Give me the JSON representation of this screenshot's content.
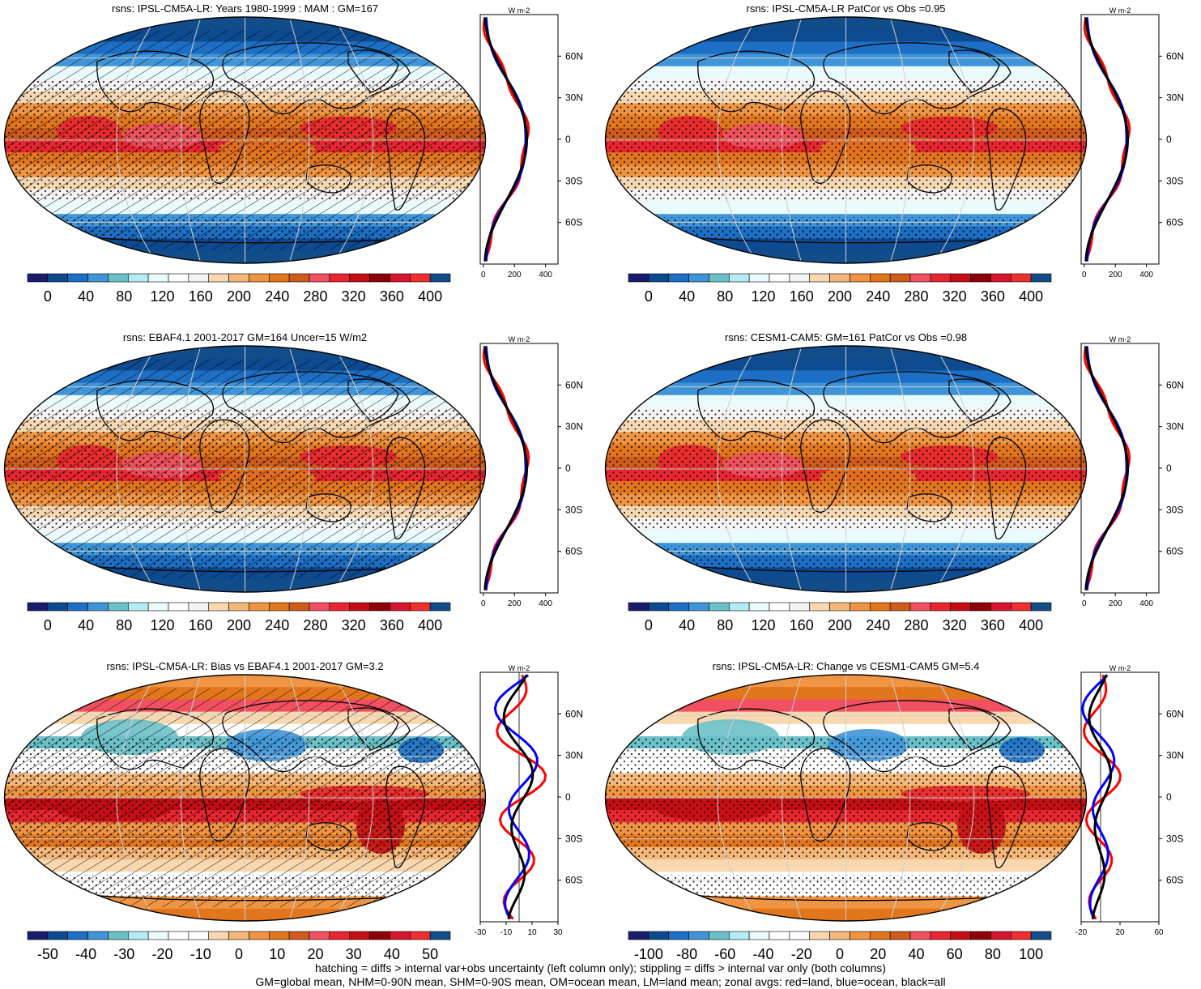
{
  "panels": [
    {
      "title": "rsns: IPSL-CM5A-LR: Years 1980-1999 : MAM : GM=167",
      "palette": [
        "#1a1d6e",
        "#0d4a8f",
        "#1c6fc4",
        "#3f95d8",
        "#6cc0c8",
        "#b3ecf2",
        "#e9fbfd",
        "#ffffff",
        "#f4f4f4",
        "#f9d8b0",
        "#f3b77a",
        "#ee9443",
        "#e2761d",
        "#d05c1c",
        "#f05060",
        "#e82630",
        "#c50d14",
        "#8e0008",
        "#d8152e",
        "#ef2e2e",
        "#124d8a"
      ],
      "colorbar_ticks": [
        "0",
        "40",
        "80",
        "120",
        "160",
        "200",
        "240",
        "280",
        "320",
        "360",
        "400"
      ],
      "zonal_xticks": [
        "0",
        "200",
        "400"
      ],
      "zonal_unit": "W m-2",
      "lat_labels": [
        "60N",
        "30N",
        "0",
        "30S",
        "60S"
      ],
      "hatch": true,
      "pattern": "clim"
    },
    {
      "title": "rsns: IPSL-CM5A-LR PatCor vs Obs =0.95",
      "palette": [
        "#1a1d6e",
        "#0d4a8f",
        "#1c6fc4",
        "#3f95d8",
        "#6cc0c8",
        "#b3ecf2",
        "#e9fbfd",
        "#ffffff",
        "#f4f4f4",
        "#f9d8b0",
        "#f3b77a",
        "#ee9443",
        "#e2761d",
        "#d05c1c",
        "#f05060",
        "#e82630",
        "#c50d14",
        "#8e0008",
        "#d8152e",
        "#ef2e2e",
        "#124d8a"
      ],
      "colorbar_ticks": [
        "0",
        "40",
        "80",
        "120",
        "160",
        "200",
        "240",
        "280",
        "320",
        "360",
        "400"
      ],
      "zonal_xticks": [
        "0",
        "200",
        "400"
      ],
      "zonal_unit": "W m-2",
      "lat_labels": [
        "60N",
        "30N",
        "0",
        "30S",
        "60S"
      ],
      "hatch": false,
      "pattern": "clim"
    },
    {
      "title": "rsns: EBAF4.1 2001-2017 GM=164 Uncer=15 W/m2",
      "palette": [
        "#1a1d6e",
        "#0d4a8f",
        "#1c6fc4",
        "#3f95d8",
        "#6cc0c8",
        "#b3ecf2",
        "#e9fbfd",
        "#ffffff",
        "#f4f4f4",
        "#f9d8b0",
        "#f3b77a",
        "#ee9443",
        "#e2761d",
        "#d05c1c",
        "#f05060",
        "#e82630",
        "#c50d14",
        "#8e0008",
        "#d8152e",
        "#ef2e2e",
        "#124d8a"
      ],
      "colorbar_ticks": [
        "0",
        "40",
        "80",
        "120",
        "160",
        "200",
        "240",
        "280",
        "320",
        "360",
        "400"
      ],
      "zonal_xticks": [
        "0",
        "200",
        "400"
      ],
      "zonal_unit": "W m-2",
      "lat_labels": [
        "60N",
        "30N",
        "0",
        "30S",
        "60S"
      ],
      "hatch": true,
      "pattern": "clim"
    },
    {
      "title": "rsns: CESM1-CAM5: GM=161 PatCor vs Obs =0.98",
      "palette": [
        "#1a1d6e",
        "#0d4a8f",
        "#1c6fc4",
        "#3f95d8",
        "#6cc0c8",
        "#b3ecf2",
        "#e9fbfd",
        "#ffffff",
        "#f4f4f4",
        "#f9d8b0",
        "#f3b77a",
        "#ee9443",
        "#e2761d",
        "#d05c1c",
        "#f05060",
        "#e82630",
        "#c50d14",
        "#8e0008",
        "#d8152e",
        "#ef2e2e",
        "#124d8a"
      ],
      "colorbar_ticks": [
        "0",
        "40",
        "80",
        "120",
        "160",
        "200",
        "240",
        "280",
        "320",
        "360",
        "400"
      ],
      "zonal_xticks": [
        "0",
        "200",
        "400"
      ],
      "zonal_unit": "W m-2",
      "lat_labels": [
        "60N",
        "30N",
        "0",
        "30S",
        "60S"
      ],
      "hatch": false,
      "pattern": "clim"
    },
    {
      "title": "rsns: IPSL-CM5A-LR: Bias vs EBAF4.1 2001-2017 GM=3.2",
      "palette": [
        "#1a1d6e",
        "#0d4a8f",
        "#1c6fc4",
        "#3f95d8",
        "#6cc0c8",
        "#b3ecf2",
        "#e9fbfd",
        "#ffffff",
        "#ffffff",
        "#f9d8b0",
        "#f3b77a",
        "#ee9443",
        "#e2761d",
        "#d05c1c",
        "#f05060",
        "#e82630",
        "#c50d14",
        "#8e0008",
        "#d8152e",
        "#ef2e2e",
        "#124d8a"
      ],
      "colorbar_ticks": [
        "-50",
        "-40",
        "-30",
        "-20",
        "-10",
        "0",
        "10",
        "20",
        "30",
        "40",
        "50"
      ],
      "zonal_xticks": [
        "-30",
        "-10",
        "10",
        "30"
      ],
      "zonal_unit": "W m-2",
      "lat_labels": [
        "60N",
        "30N",
        "0",
        "30S",
        "60S"
      ],
      "hatch": true,
      "pattern": "diff"
    },
    {
      "title": "rsns: IPSL-CM5A-LR: Change vs CESM1-CAM5 GM=5.4",
      "palette": [
        "#1a1d6e",
        "#0d4a8f",
        "#1c6fc4",
        "#3f95d8",
        "#6cc0c8",
        "#b3ecf2",
        "#e9fbfd",
        "#ffffff",
        "#ffffff",
        "#f9d8b0",
        "#f3b77a",
        "#ee9443",
        "#e2761d",
        "#d05c1c",
        "#f05060",
        "#e82630",
        "#c50d14",
        "#8e0008",
        "#d8152e",
        "#ef2e2e",
        "#124d8a"
      ],
      "colorbar_ticks": [
        "-100",
        "-80",
        "-60",
        "-40",
        "-20",
        "0",
        "20",
        "40",
        "60",
        "80",
        "100"
      ],
      "zonal_xticks": [
        "-20",
        "20",
        "60"
      ],
      "zonal_unit": "W m-2",
      "lat_labels": [
        "60N",
        "30N",
        "0",
        "30S",
        "60S"
      ],
      "hatch": false,
      "pattern": "diff"
    }
  ],
  "footer": {
    "line1": "hatching = diffs > internal var+obs uncertainty (left column only); stippling = diffs > internal var only (both columns)",
    "line2": "GM=global mean, NHM=0-90N mean, SHM=0-90S mean, OM=ocean mean, LM=land mean; zonal avgs: red=land, blue=ocean, black=all"
  },
  "line_colors": {
    "land": "#ff0000",
    "ocean": "#0000ff",
    "all": "#000000"
  }
}
